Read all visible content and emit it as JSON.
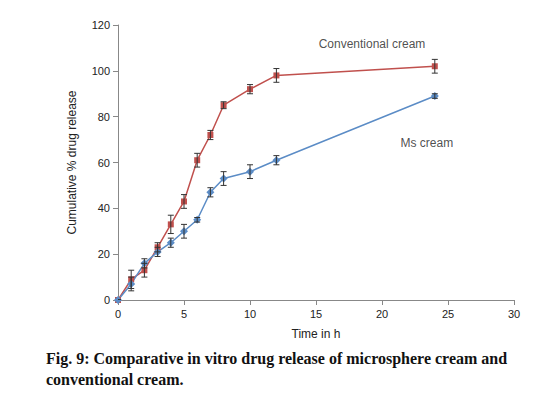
{
  "chart_data": {
    "type": "line",
    "title": "Fig. 9: Comparative in vitro drug release of microsphere cream and conventional cream.",
    "x_label": "Time in h",
    "y_label": "Cumulative % drug release",
    "x": [
      0,
      1,
      2,
      3,
      4,
      5,
      6,
      7,
      8,
      10,
      12,
      24
    ],
    "series": [
      {
        "color": "#c0504d",
        "marker": "square",
        "values": [
          0,
          9,
          13,
          23,
          33,
          43,
          61,
          72,
          85,
          92,
          98,
          102
        ],
        "errors": [
          0,
          4,
          3,
          2,
          4,
          3,
          3,
          2,
          1.5,
          2,
          3,
          3
        ]
      },
      {
        "color": "#5b8cc6",
        "marker": "diamond",
        "values": [
          0,
          7,
          16,
          21,
          25,
          30,
          35,
          47,
          53,
          56,
          61,
          89
        ],
        "errors": [
          0,
          3,
          2,
          2,
          2,
          3,
          1,
          2,
          3,
          3,
          2,
          1
        ]
      }
    ],
    "annotations": [
      {
        "text": "Conventional cream",
        "x": 15.2,
        "y": 111.5
      },
      {
        "text": "Ms cream",
        "x": 21.4,
        "y": 68.7
      }
    ],
    "xlim": [
      0,
      30
    ],
    "xticks": [
      0,
      5,
      10,
      15,
      20,
      25,
      30
    ],
    "ylim": [
      0,
      120
    ],
    "yticks": [
      0,
      20,
      40,
      60,
      80,
      100,
      120
    ],
    "grid": false
  }
}
